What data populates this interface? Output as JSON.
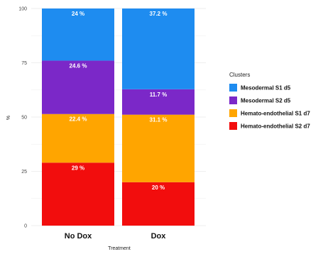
{
  "chart_data": {
    "type": "bar",
    "stacked": true,
    "categories": [
      "No Dox",
      "Dox"
    ],
    "series": [
      {
        "name": "Hemato-endothelial S2 d7",
        "values": [
          29,
          20
        ],
        "labels": [
          "29 %",
          "20 %"
        ],
        "color": "#f20d0d"
      },
      {
        "name": "Hemato-endothelial S1 d7",
        "values": [
          22.4,
          31.1
        ],
        "labels": [
          "22.4 %",
          "31.1 %"
        ],
        "color": "#ffa500"
      },
      {
        "name": "Mesodermal S2 d5",
        "values": [
          24.6,
          11.7
        ],
        "labels": [
          "24.6 %",
          "11.7 %"
        ],
        "color": "#7b28c8"
      },
      {
        "name": "Mesodermal S1 d5",
        "values": [
          24,
          37.2
        ],
        "labels": [
          "24 %",
          "37.2 %"
        ],
        "color": "#1e8cf0"
      }
    ],
    "title": "",
    "xlabel": "Treatment",
    "ylabel": "%",
    "ylim": [
      0,
      100
    ],
    "yticks": [
      "0",
      "25",
      "50",
      "75",
      "100"
    ],
    "grid": true,
    "legend": {
      "title": "Clusters",
      "position": "right",
      "items": [
        {
          "label": "Mesodermal S1 d5",
          "color": "#1e8cf0"
        },
        {
          "label": "Mesodermal S2 d5",
          "color": "#7b28c8"
        },
        {
          "label": "Hemato-endothelial S1 d7",
          "color": "#ffa500"
        },
        {
          "label": "Hemato-endothelial S2 d7",
          "color": "#f20d0d"
        }
      ]
    }
  }
}
